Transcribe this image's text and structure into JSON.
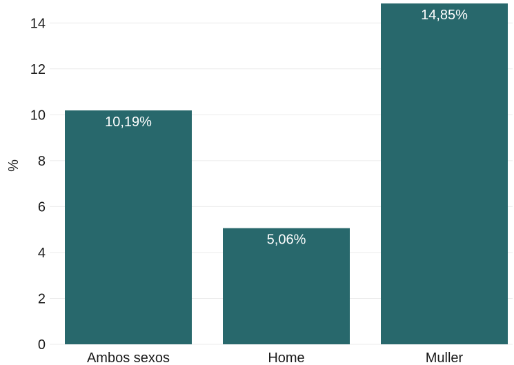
{
  "chart_data": {
    "type": "bar",
    "categories": [
      "Ambos sexos",
      "Home",
      "Muller"
    ],
    "values": [
      10.19,
      5.06,
      14.85
    ],
    "data_labels": [
      "10,19%",
      "5,06%",
      "14,85%"
    ],
    "title": "",
    "xlabel": "",
    "ylabel": "%",
    "ylim": [
      0,
      15
    ],
    "yticks": [
      0,
      2,
      4,
      6,
      8,
      10,
      12,
      14
    ],
    "grid": true,
    "legend": "none",
    "bar_color": "#28686c"
  }
}
